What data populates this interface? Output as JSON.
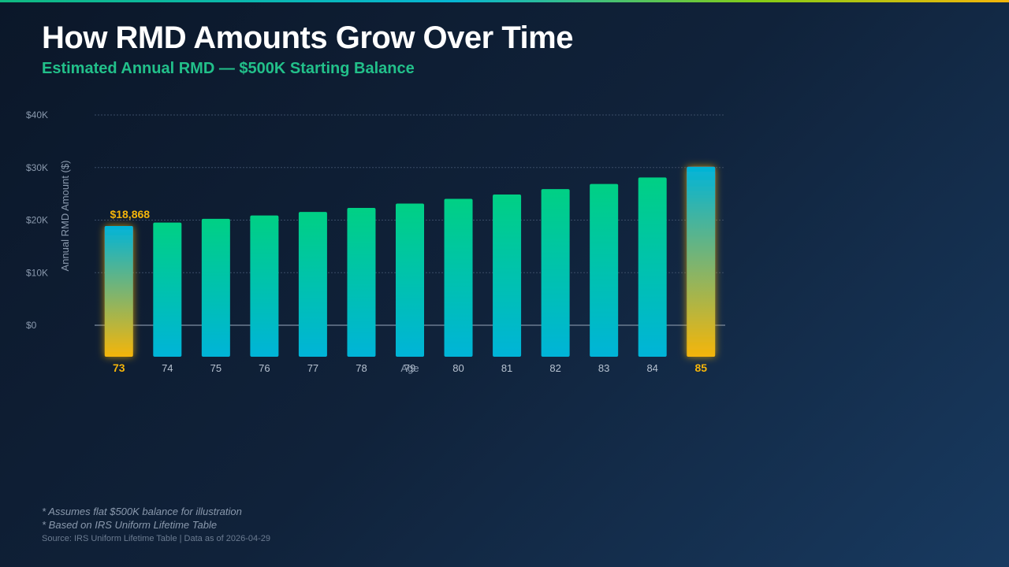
{
  "header": {
    "title": "How RMD Amounts Grow Over Time",
    "subtitle": "Estimated Annual RMD — $500K Starting Balance"
  },
  "chart_data": {
    "type": "bar",
    "title": "",
    "xlabel": "Age",
    "ylabel": "Annual RMD Amount ($)",
    "categories": [
      "73",
      "74",
      "75",
      "76",
      "77",
      "78",
      "79",
      "80",
      "81",
      "82",
      "83",
      "84",
      "85"
    ],
    "values": [
      18868,
      19531,
      20243,
      20877,
      21552,
      22321,
      23148,
      24038,
      24876,
      25906,
      26882,
      28102,
      30146
    ],
    "ylim": [
      0,
      40000
    ],
    "yticks": [
      {
        "value": 0,
        "label": "$0"
      },
      {
        "value": 10000,
        "label": "$10K"
      },
      {
        "value": 20000,
        "label": "$20K"
      },
      {
        "value": 30000,
        "label": "$30K"
      },
      {
        "value": 40000,
        "label": "$40K"
      }
    ],
    "data_labels": [
      {
        "category": "73",
        "label": "$18,868"
      }
    ],
    "highlighted": [
      "73",
      "85"
    ],
    "grid": true,
    "colors": {
      "bar_top": "#00d084",
      "bar_bottom": "#00b4d8",
      "highlight_top": "#00b4d8",
      "highlight_bottom": "#f5b50a",
      "highlight_label": "#f5b50a"
    }
  },
  "footnotes": [
    "* Assumes flat $500K balance for illustration",
    "* Based on IRS Uniform Lifetime Table"
  ],
  "source": "Source: IRS Uniform Lifetime Table | Data as of 2026-04-29"
}
